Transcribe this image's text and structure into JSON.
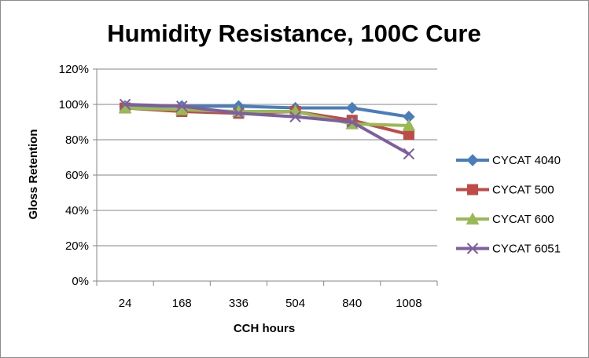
{
  "chart_data": {
    "type": "line",
    "title": "Humidity Resistance, 100C Cure",
    "xlabel": "CCH hours",
    "ylabel": "Gloss Retention",
    "categories": [
      "24",
      "168",
      "336",
      "504",
      "840",
      "1008"
    ],
    "yticks": [
      "0%",
      "20%",
      "40%",
      "60%",
      "80%",
      "100%",
      "120%"
    ],
    "ylim": [
      0,
      1.2
    ],
    "grid": true,
    "legend": "right",
    "series": [
      {
        "name": "CYCAT 4040",
        "values": [
          0.99,
          0.99,
          0.99,
          0.98,
          0.98,
          0.93
        ],
        "color": "#4a7ebb",
        "marker": "diamond"
      },
      {
        "name": "CYCAT 500",
        "values": [
          0.98,
          0.96,
          0.95,
          0.96,
          0.91,
          0.83
        ],
        "color": "#be4b48",
        "marker": "square"
      },
      {
        "name": "CYCAT 600",
        "values": [
          0.98,
          0.97,
          0.96,
          0.96,
          0.89,
          0.88
        ],
        "color": "#98b954",
        "marker": "triangle"
      },
      {
        "name": "CYCAT 6051",
        "values": [
          1.0,
          0.99,
          0.95,
          0.93,
          0.9,
          0.72
        ],
        "color": "#7d5fa0",
        "marker": "x"
      }
    ]
  }
}
